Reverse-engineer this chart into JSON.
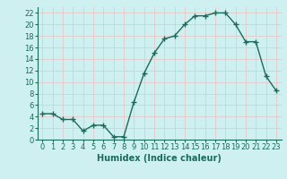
{
  "x": [
    0,
    1,
    2,
    3,
    4,
    5,
    6,
    7,
    8,
    9,
    10,
    11,
    12,
    13,
    14,
    15,
    16,
    17,
    18,
    19,
    20,
    21,
    22,
    23
  ],
  "y": [
    4.5,
    4.5,
    3.5,
    3.5,
    1.5,
    2.5,
    2.5,
    0.5,
    0.5,
    6.5,
    11.5,
    15.0,
    17.5,
    18.0,
    20.0,
    21.5,
    21.5,
    22.0,
    22.0,
    20.0,
    17.0,
    17.0,
    11.0,
    8.5
  ],
  "line_color": "#1a6b5a",
  "marker": "+",
  "markersize": 4,
  "linewidth": 1.0,
  "xlabel": "Humidex (Indice chaleur)",
  "xlim": [
    -0.5,
    23.5
  ],
  "ylim": [
    0,
    23
  ],
  "yticks": [
    0,
    2,
    4,
    6,
    8,
    10,
    12,
    14,
    16,
    18,
    20,
    22
  ],
  "xticks": [
    0,
    1,
    2,
    3,
    4,
    5,
    6,
    7,
    8,
    9,
    10,
    11,
    12,
    13,
    14,
    15,
    16,
    17,
    18,
    19,
    20,
    21,
    22,
    23
  ],
  "xtick_labels": [
    "0",
    "1",
    "2",
    "3",
    "4",
    "5",
    "6",
    "7",
    "8",
    "9",
    "10",
    "11",
    "12",
    "13",
    "14",
    "15",
    "16",
    "17",
    "18",
    "19",
    "20",
    "21",
    "22",
    "23"
  ],
  "bg_color": "#cff0f0",
  "grid_color": "#e8c8c8",
  "tick_color": "#1a6b5a",
  "label_fontsize": 7,
  "tick_fontsize": 6
}
